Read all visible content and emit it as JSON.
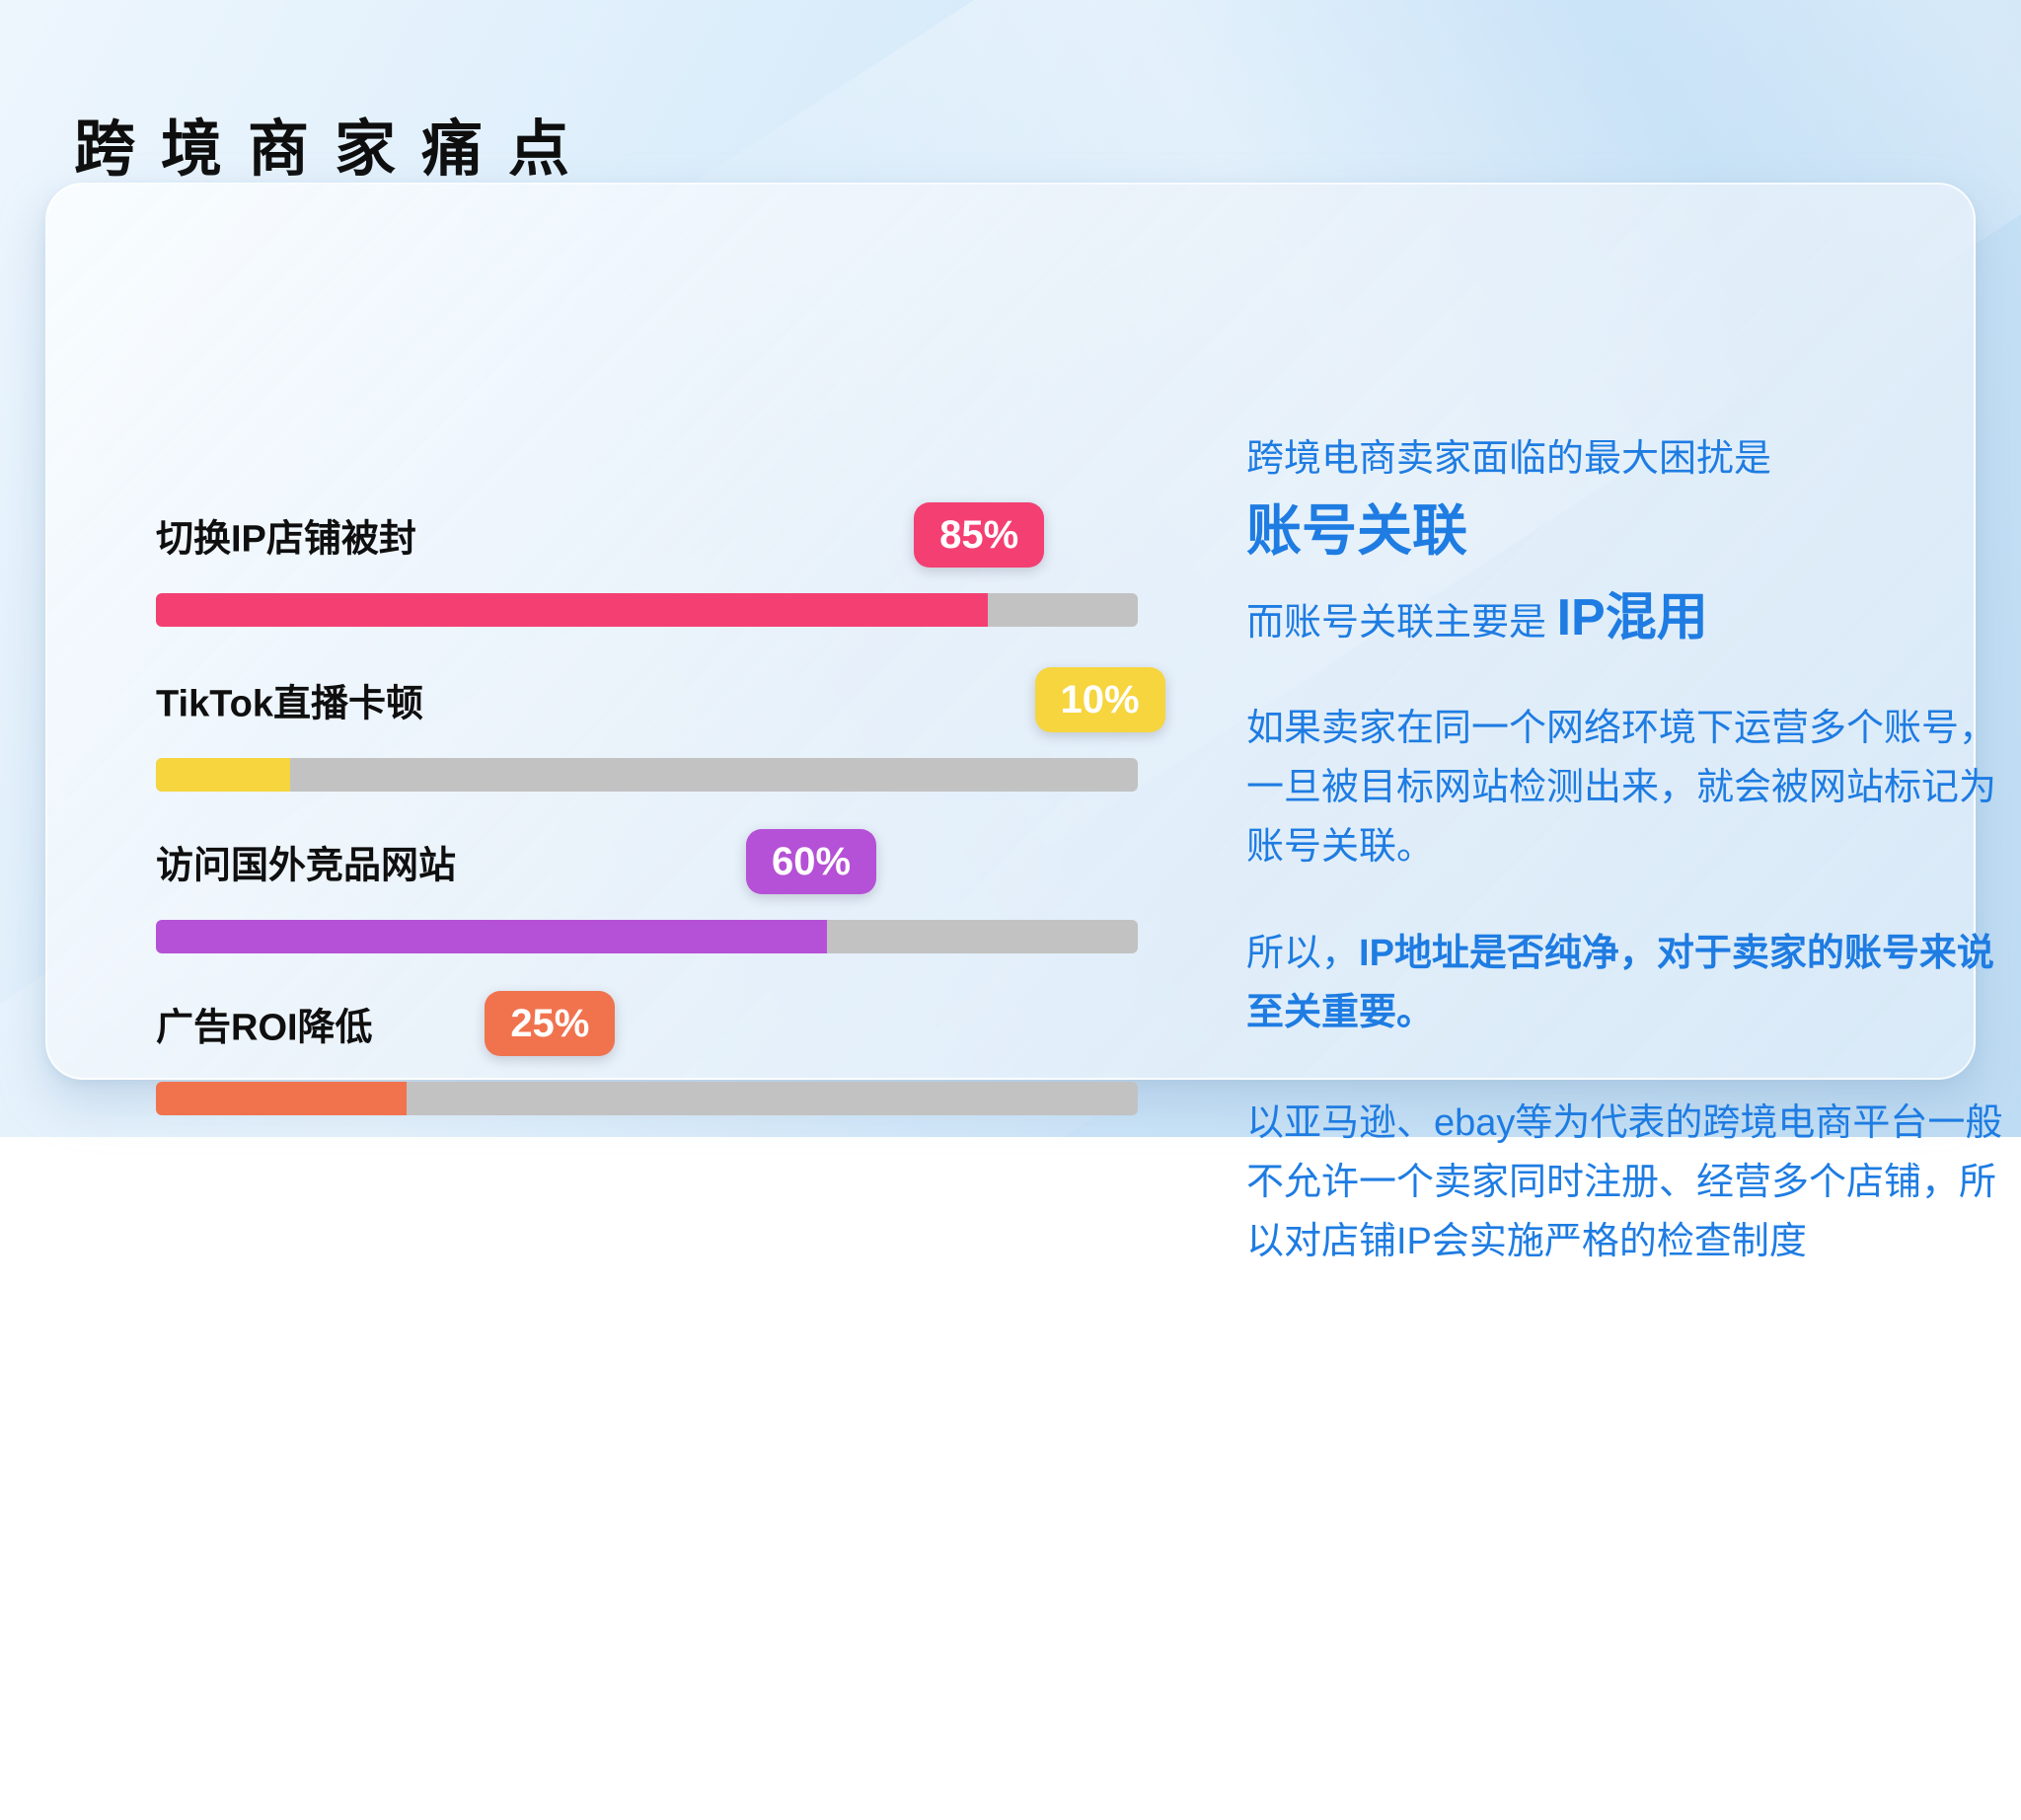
{
  "page": {
    "title": "跨境商家痛点"
  },
  "chart_data": {
    "type": "bar",
    "orientation": "horizontal",
    "unit": "%",
    "title": "",
    "xlabel": "",
    "ylabel": "",
    "xlim": [
      0,
      100
    ],
    "grid": false,
    "legend": false,
    "track_color": "#c2c2c2",
    "categories": [
      "切换IP店铺被封",
      "TikTok直播卡顿",
      "访问国外竞品网站",
      "广告ROI降低"
    ],
    "values": [
      85,
      10,
      60,
      25
    ],
    "rows": [
      {
        "label": "切换IP店铺被封",
        "value": 85,
        "value_label": "85%",
        "color": "#f43f72",
        "fill_width": "84.7%",
        "badge_left": "77.2%"
      },
      {
        "label": "TikTok直播卡顿",
        "value": 10,
        "value_label": "10%",
        "color": "#f6d53e",
        "fill_width": "13.7%",
        "badge_left": "89.5%"
      },
      {
        "label": "访问国外竞品网站",
        "value": 60,
        "value_label": "60%",
        "color": "#b551d6",
        "fill_width": "68.3%",
        "badge_left": "60.1%"
      },
      {
        "label": "广告ROI降低",
        "value": 25,
        "value_label": "25%",
        "color": "#f0734e",
        "fill_width": "25.5%",
        "badge_left": "33.5%"
      }
    ]
  },
  "panel": {
    "text_color": "#1e7ce2",
    "intro_line": "跨境电商卖家面临的最大困扰是",
    "headline": "账号关联",
    "line3_prefix": "而账号关联主要是 ",
    "line3_emphasis": "IP混用",
    "para1": "如果卖家在同一个网络环境下运营多个账号，一旦被目标网站检测出来，就会被网站标记为账号关联。",
    "para2_prefix": "所以，",
    "para2_bold": "IP地址是否纯净，对于卖家的账号来说至关重要。",
    "para3": "以亚马逊、ebay等为代表的跨境电商平台一般不允许一个卖家同时注册、经营多个店铺，所以对店铺IP会实施严格的检查制度"
  }
}
